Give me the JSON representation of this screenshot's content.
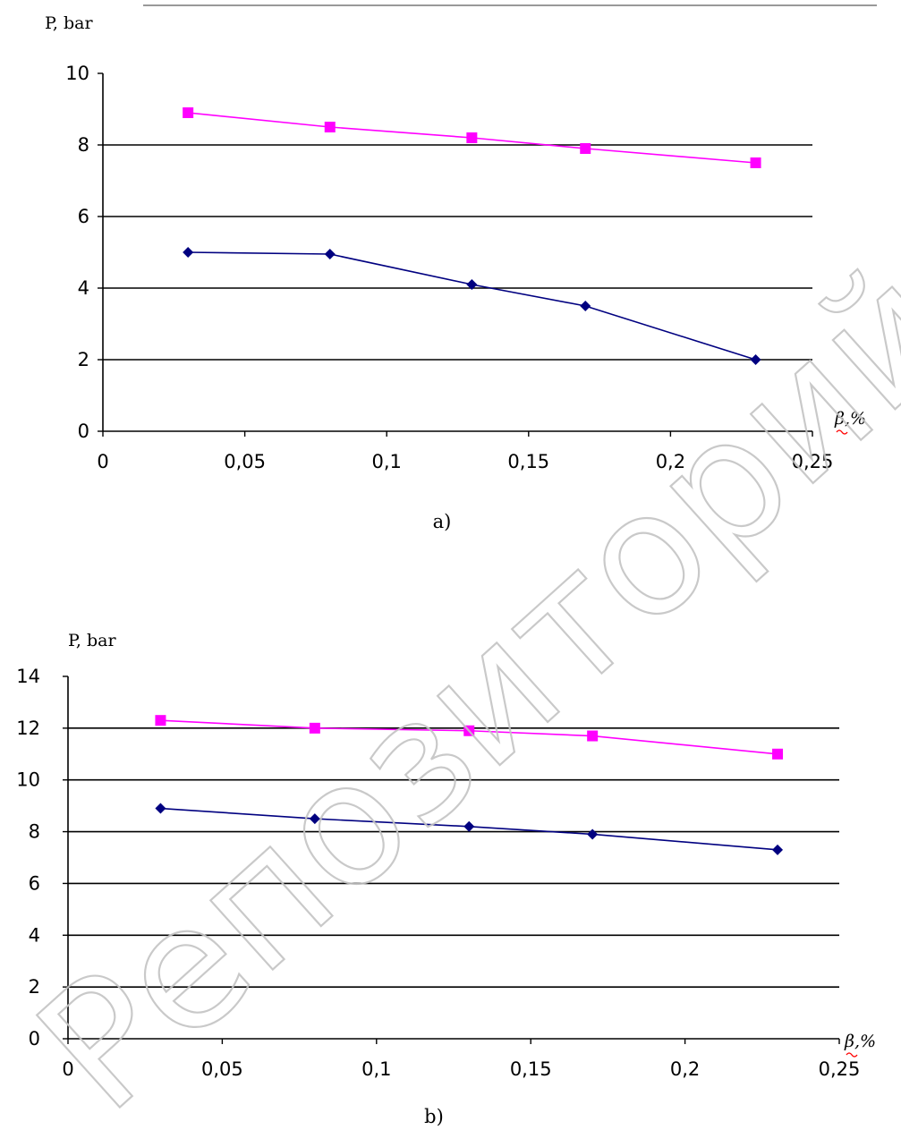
{
  "chart_data": [
    {
      "type": "line",
      "caption": "a)",
      "ylabel": "P, bar",
      "xlabel": "β,%",
      "xlim": [
        0,
        0.25
      ],
      "ylim": [
        0,
        10
      ],
      "x_ticks": [
        "0",
        "0,05",
        "0,1",
        "0,15",
        "0,2",
        "0,25"
      ],
      "y_ticks": [
        "0",
        "2",
        "4",
        "6",
        "8",
        "10"
      ],
      "grid": "horizontal",
      "legend": "none",
      "series": [
        {
          "color": "#ff00ff",
          "marker": "square",
          "x": [
            0.03,
            0.08,
            0.13,
            0.17,
            0.23
          ],
          "y": [
            8.9,
            8.5,
            8.2,
            7.9,
            7.5
          ]
        },
        {
          "color": "#000080",
          "marker": "diamond",
          "x": [
            0.03,
            0.08,
            0.13,
            0.17,
            0.23
          ],
          "y": [
            5.0,
            4.95,
            4.1,
            3.5,
            2.0
          ]
        }
      ]
    },
    {
      "type": "line",
      "caption": "b)",
      "ylabel": "P, bar",
      "xlabel": "β,%",
      "xlim": [
        0,
        0.25
      ],
      "ylim": [
        0,
        14
      ],
      "x_ticks": [
        "0",
        "0,05",
        "0,1",
        "0,15",
        "0,2",
        "0,25"
      ],
      "y_ticks": [
        "0",
        "2",
        "4",
        "6",
        "8",
        "10",
        "12",
        "14"
      ],
      "grid": "horizontal",
      "legend": "none",
      "series": [
        {
          "color": "#ff00ff",
          "marker": "square",
          "x": [
            0.03,
            0.08,
            0.13,
            0.17,
            0.23
          ],
          "y": [
            12.3,
            12.0,
            11.9,
            11.7,
            11.0
          ]
        },
        {
          "color": "#000080",
          "marker": "diamond",
          "x": [
            0.03,
            0.08,
            0.13,
            0.17,
            0.23
          ],
          "y": [
            8.9,
            8.5,
            8.2,
            7.9,
            7.3
          ]
        }
      ]
    }
  ],
  "watermark": {
    "text": "Репозиторий Карг"
  }
}
